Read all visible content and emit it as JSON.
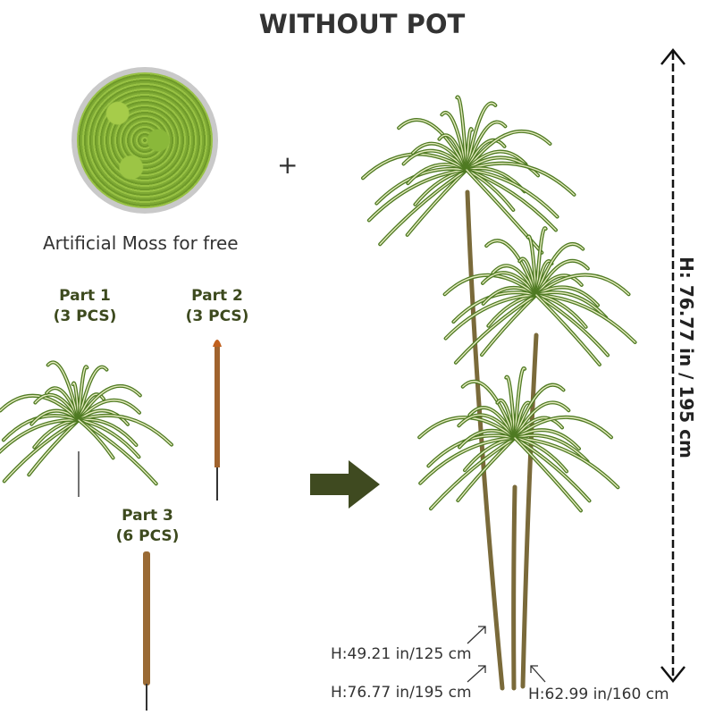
{
  "title": "WITHOUT POT",
  "moss_caption": "Artificial Moss for free",
  "plus_sign": "+",
  "parts": [
    {
      "name": "Part 1",
      "qty": "(3 PCS)"
    },
    {
      "name": "Part 2",
      "qty": "(3 PCS)"
    },
    {
      "name": "Part 3",
      "qty": "(6 PCS)"
    }
  ],
  "total_height": "H: 76.77 in / 195 cm",
  "stem_heights": [
    "H:49.21 in/125 cm",
    "H:76.77 in/195 cm",
    "H:62.99 in/160 cm"
  ],
  "colors": {
    "label_text": "#3d4a1e",
    "arrow": "#3f4a20",
    "leaf": "#4f7a22",
    "leaf_stripe": "#e6ecc0",
    "stem": "#7a6a3a"
  },
  "icons": [
    "right-arrow-icon",
    "height-dimension-arrow-icon",
    "pointer-arrow-icon"
  ]
}
